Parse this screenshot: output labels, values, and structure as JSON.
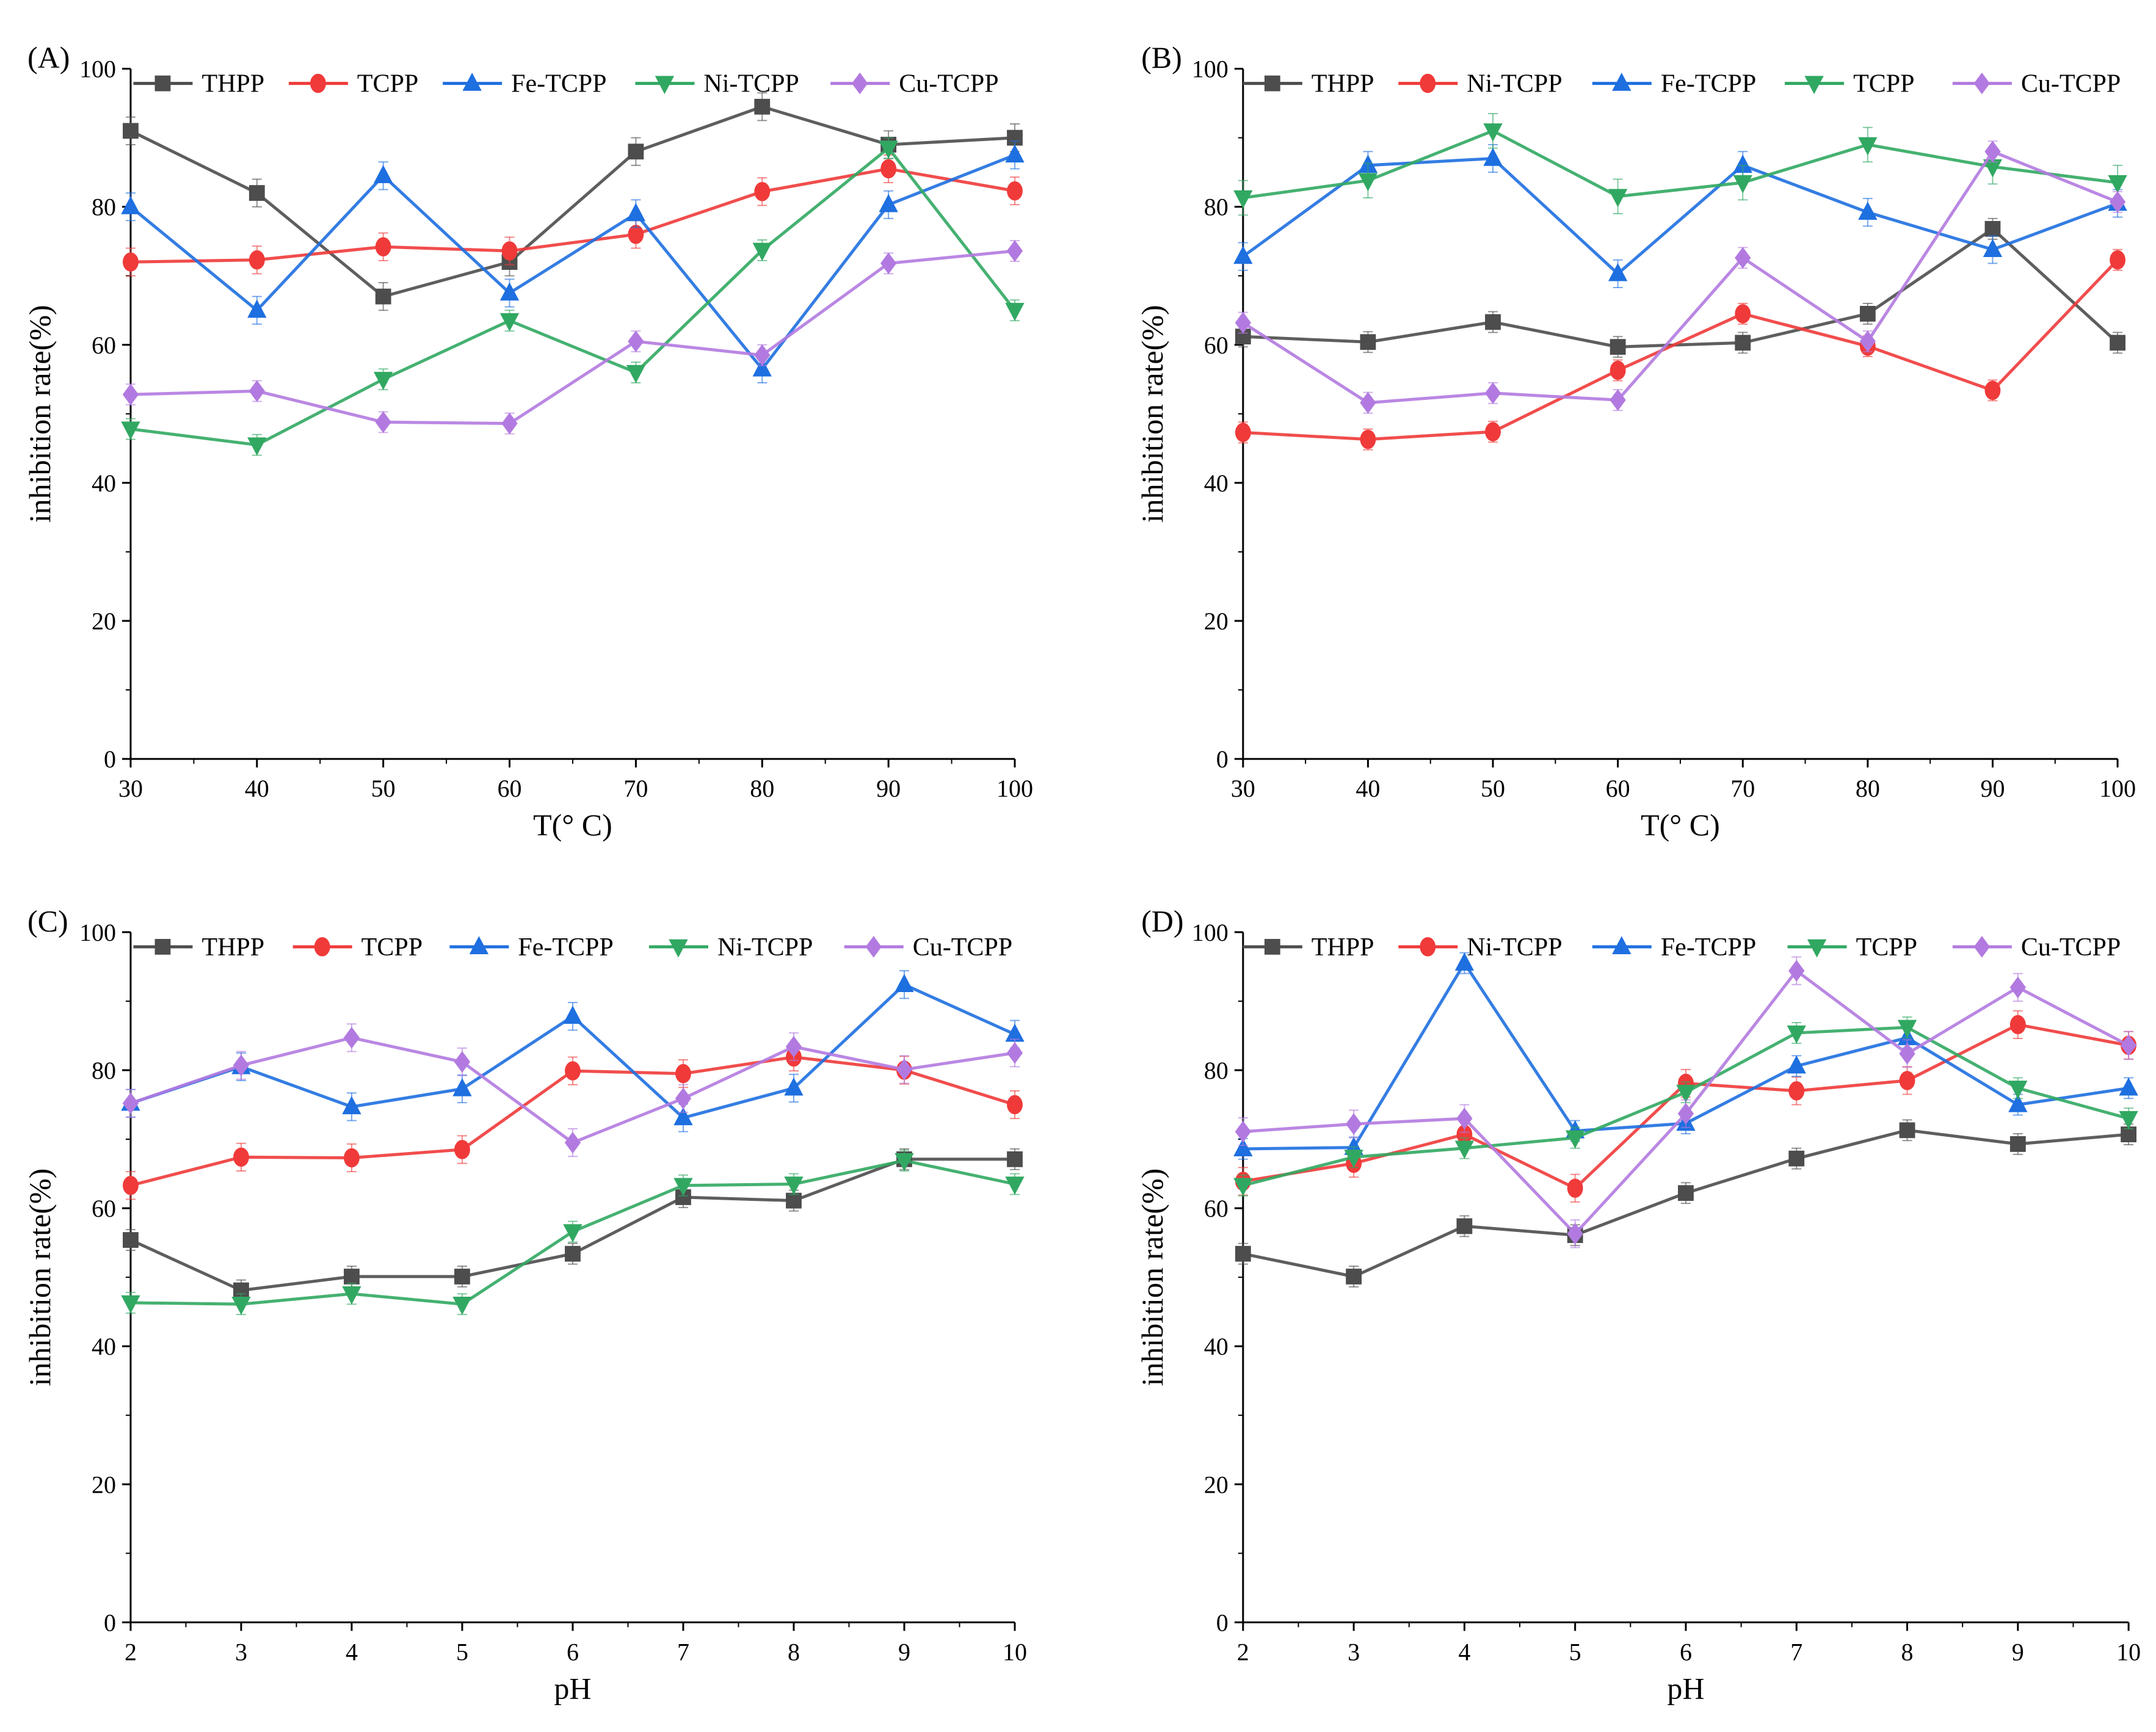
{
  "chart_data": [
    {
      "panel_label": "(A)",
      "type": "line",
      "xlabel": "T(° C)",
      "ylabel": "inhibition rate(%)",
      "x": [
        30,
        40,
        50,
        60,
        70,
        80,
        90,
        100
      ],
      "xlim": [
        30,
        100
      ],
      "ylim": [
        0,
        100
      ],
      "xticks": [
        "30",
        "40",
        "50",
        "60",
        "70",
        "80",
        "90",
        "100"
      ],
      "yticks": [
        "0",
        "20",
        "40",
        "60",
        "80",
        "100"
      ],
      "legend_position": "top",
      "grid": false,
      "series": [
        {
          "name": "THPP",
          "color": "#4d4d4d",
          "marker": "square",
          "values": [
            91,
            82,
            67,
            72,
            88,
            94.5,
            89,
            90
          ],
          "error": 2
        },
        {
          "name": "TCPP",
          "color": "#f03a3a",
          "marker": "circle",
          "values": [
            72,
            72.3,
            74.2,
            73.6,
            76,
            82.2,
            85.5,
            82.3
          ],
          "error": 2
        },
        {
          "name": "Fe-TCPP",
          "color": "#1e6fe0",
          "marker": "triangle-up",
          "values": [
            80,
            65,
            84.5,
            67.5,
            79,
            56.5,
            80.3,
            87.5
          ],
          "error": 2
        },
        {
          "name": "Ni-TCPP",
          "color": "#31a862",
          "marker": "triangle-down",
          "values": [
            47.8,
            45.5,
            55,
            63.5,
            56,
            73.7,
            88.5,
            65
          ],
          "error": 1.5
        },
        {
          "name": "Cu-TCPP",
          "color": "#b27ae0",
          "marker": "diamond",
          "values": [
            52.8,
            53.3,
            48.8,
            48.6,
            60.5,
            58.5,
            71.8,
            73.6
          ],
          "error": 1.5
        }
      ]
    },
    {
      "panel_label": "(B)",
      "type": "line",
      "xlabel": "T(° C)",
      "ylabel": "inhibition rate(%)",
      "x": [
        30,
        40,
        50,
        60,
        70,
        80,
        90,
        100
      ],
      "xlim": [
        30,
        100
      ],
      "ylim": [
        0,
        100
      ],
      "xticks": [
        "30",
        "40",
        "50",
        "60",
        "70",
        "80",
        "90",
        "100"
      ],
      "yticks": [
        "0",
        "20",
        "40",
        "60",
        "80",
        "100"
      ],
      "legend_position": "top",
      "grid": false,
      "series": [
        {
          "name": "THPP",
          "color": "#4d4d4d",
          "marker": "square",
          "values": [
            61.2,
            60.4,
            63.3,
            59.7,
            60.3,
            64.5,
            76.8,
            60.3
          ],
          "error": 1.5
        },
        {
          "name": "Ni-TCPP",
          "color": "#f03a3a",
          "marker": "circle",
          "values": [
            47.3,
            46.3,
            47.4,
            56.3,
            64.5,
            59.8,
            53.4,
            72.3
          ],
          "error": 1.5
        },
        {
          "name": "Fe-TCPP",
          "color": "#1e6fe0",
          "marker": "triangle-up",
          "values": [
            72.8,
            86,
            87,
            70.3,
            86,
            79.2,
            73.8,
            80.5
          ],
          "error": 2
        },
        {
          "name": "TCPP",
          "color": "#31a862",
          "marker": "triangle-down",
          "values": [
            81.3,
            83.8,
            91,
            81.5,
            83.5,
            89,
            85.8,
            83.5
          ],
          "error": 2.5
        },
        {
          "name": "Cu-TCPP",
          "color": "#b27ae0",
          "marker": "diamond",
          "values": [
            63.2,
            51.6,
            53,
            52,
            72.6,
            60.5,
            88,
            80.7
          ],
          "error": 1.5
        }
      ]
    },
    {
      "panel_label": "(C)",
      "type": "line",
      "xlabel": "pH",
      "ylabel": "inhibition rate(%)",
      "x": [
        2,
        3,
        4,
        5,
        6,
        7,
        8,
        9,
        10
      ],
      "xlim": [
        2,
        10
      ],
      "ylim": [
        0,
        100
      ],
      "xticks": [
        "2",
        "3",
        "4",
        "5",
        "6",
        "7",
        "8",
        "9",
        "10"
      ],
      "yticks": [
        "0",
        "20",
        "40",
        "60",
        "80",
        "100"
      ],
      "legend_position": "top",
      "grid": false,
      "series": [
        {
          "name": "THPP",
          "color": "#4d4d4d",
          "marker": "square",
          "values": [
            55.4,
            48.1,
            50.1,
            50.1,
            53.4,
            61.6,
            61.1,
            67.1,
            67.1
          ],
          "error": 1.5
        },
        {
          "name": "TCPP",
          "color": "#f03a3a",
          "marker": "circle",
          "values": [
            63.3,
            67.4,
            67.3,
            68.5,
            79.9,
            79.5,
            81.9,
            80,
            75
          ],
          "error": 2
        },
        {
          "name": "Fe-TCPP",
          "color": "#1e6fe0",
          "marker": "triangle-up",
          "values": [
            75.2,
            80.5,
            74.7,
            77.3,
            87.8,
            73.1,
            77.4,
            92.4,
            85.2
          ],
          "error": 2
        },
        {
          "name": "Ni-TCPP",
          "color": "#31a862",
          "marker": "triangle-down",
          "values": [
            46.3,
            46.1,
            47.6,
            46.1,
            56.6,
            63.3,
            63.5,
            66.9,
            63.5
          ],
          "error": 1.5
        },
        {
          "name": "Cu-TCPP",
          "color": "#b27ae0",
          "marker": "diamond",
          "values": [
            75.2,
            80.7,
            84.7,
            81.2,
            69.5,
            75.9,
            83.4,
            80.1,
            82.5
          ],
          "error": 2
        }
      ]
    },
    {
      "panel_label": "(D)",
      "type": "line",
      "xlabel": "pH",
      "ylabel": "inhibition rate(%)",
      "x": [
        2,
        3,
        4,
        5,
        6,
        7,
        8,
        9,
        10
      ],
      "xlim": [
        2,
        10
      ],
      "ylim": [
        0,
        100
      ],
      "xticks": [
        "2",
        "3",
        "4",
        "5",
        "6",
        "7",
        "8",
        "9",
        "10"
      ],
      "yticks": [
        "0",
        "20",
        "40",
        "60",
        "80",
        "100"
      ],
      "legend_position": "top",
      "grid": false,
      "series": [
        {
          "name": "THPP",
          "color": "#4d4d4d",
          "marker": "square",
          "values": [
            53.4,
            50.1,
            57.4,
            56.1,
            62.2,
            67.2,
            71.3,
            69.3,
            70.7
          ],
          "error": 1.5
        },
        {
          "name": "Ni-TCPP",
          "color": "#f03a3a",
          "marker": "circle",
          "values": [
            63.9,
            66.5,
            70.7,
            62.9,
            78.1,
            77,
            78.5,
            86.6,
            83.6
          ],
          "error": 2
        },
        {
          "name": "Fe-TCPP",
          "color": "#1e6fe0",
          "marker": "triangle-up",
          "values": [
            68.6,
            68.8,
            95.5,
            71.2,
            72.3,
            80.6,
            84.7,
            75,
            77.4
          ],
          "error": 1.5
        },
        {
          "name": "TCPP",
          "color": "#31a862",
          "marker": "triangle-down",
          "values": [
            63.3,
            67.4,
            68.7,
            70.2,
            76.8,
            85.4,
            86.2,
            77.4,
            73
          ],
          "error": 1.5
        },
        {
          "name": "Cu-TCPP",
          "color": "#b27ae0",
          "marker": "diamond",
          "values": [
            71.1,
            72.2,
            73,
            56.3,
            73.7,
            94.4,
            82.4,
            92,
            83.6
          ],
          "error": 2
        }
      ]
    }
  ]
}
